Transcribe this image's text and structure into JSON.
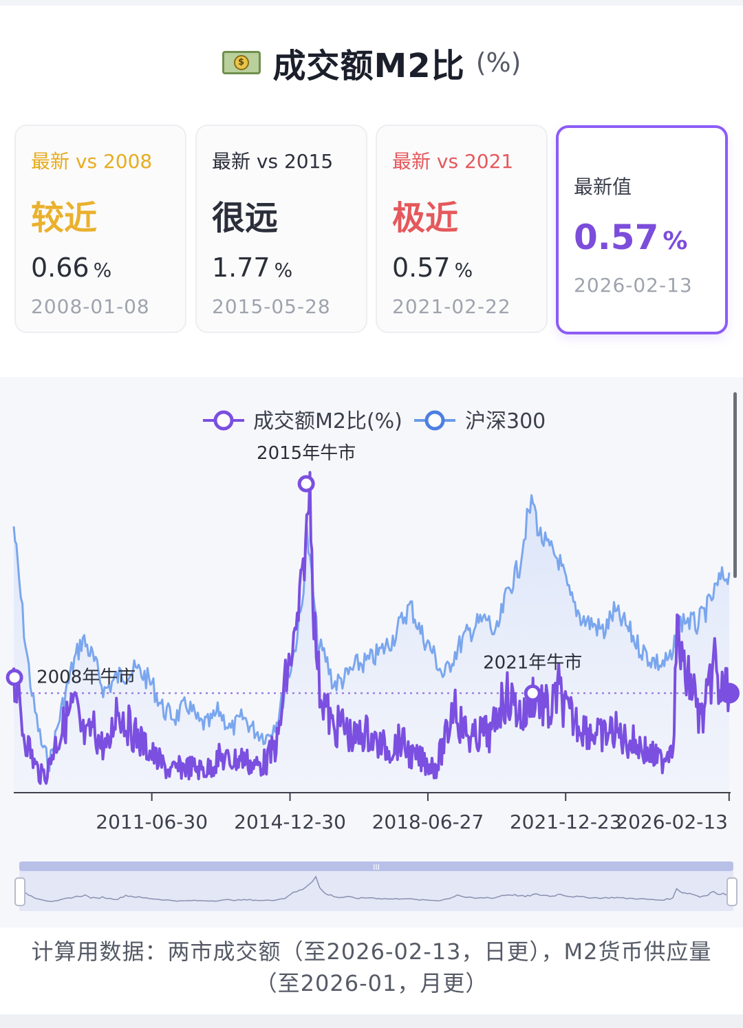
{
  "header": {
    "icon": "money-bill-icon",
    "title": "成交额M2比",
    "unit": "(%)"
  },
  "cards": [
    {
      "label": "最新 vs 2008",
      "status": "较近",
      "value": "0.66",
      "unit": "%",
      "date": "2008-01-08",
      "color": "#e6ac1f"
    },
    {
      "label": "最新 vs 2015",
      "status": "很远",
      "value": "1.77",
      "unit": "%",
      "date": "2015-05-28",
      "color": "#2b2f3a"
    },
    {
      "label": "最新 vs 2021",
      "status": "极近",
      "value": "0.57",
      "unit": "%",
      "date": "2021-02-22",
      "color": "#e5585b"
    }
  ],
  "latest": {
    "label": "最新值",
    "value": "0.57",
    "unit": "%",
    "date": "2026-02-13",
    "accent": "#8b5cf6"
  },
  "chart_data": {
    "type": "line",
    "legend": [
      "成交额M2比(%)",
      "沪深300"
    ],
    "legend_placement": "top-center",
    "x_ticks": [
      "2011-06-30",
      "2014-12-30",
      "2018-06-27",
      "2021-12-23",
      "2026-02-13"
    ],
    "x_range": [
      "2008-01-08",
      "2026-02-13"
    ],
    "reference_line": 0.57,
    "annotations": [
      {
        "label": "2008年牛市",
        "x": "2008-01-08",
        "y": 0.66
      },
      {
        "label": "2015年牛市",
        "x": "2015-05-28",
        "y": 1.77
      },
      {
        "label": "2021年牛市",
        "x": "2021-02-22",
        "y": 0.57
      }
    ],
    "series": [
      {
        "name": "成交额M2比(%)",
        "color": "#7b4fe0",
        "x": [
          2008.0,
          2008.1,
          2008.25,
          2008.4,
          2008.55,
          2008.7,
          2008.85,
          2009.0,
          2009.2,
          2009.4,
          2009.55,
          2009.7,
          2009.85,
          2010.0,
          2010.2,
          2010.4,
          2010.6,
          2010.8,
          2011.0,
          2011.2,
          2011.5,
          2011.8,
          2012.0,
          2012.3,
          2012.6,
          2012.9,
          2013.2,
          2013.5,
          2013.8,
          2014.1,
          2014.4,
          2014.7,
          2014.85,
          2015.0,
          2015.15,
          2015.3,
          2015.42,
          2015.5,
          2015.6,
          2015.75,
          2015.9,
          2016.1,
          2016.3,
          2016.6,
          2016.9,
          2017.2,
          2017.5,
          2017.8,
          2018.1,
          2018.4,
          2018.7,
          2019.0,
          2019.15,
          2019.3,
          2019.6,
          2019.9,
          2020.1,
          2020.3,
          2020.5,
          2020.7,
          2020.9,
          2021.15,
          2021.4,
          2021.6,
          2021.8,
          2022.0,
          2022.3,
          2022.6,
          2022.9,
          2023.2,
          2023.5,
          2023.8,
          2024.1,
          2024.4,
          2024.7,
          2024.8,
          2024.95,
          2025.2,
          2025.4,
          2025.6,
          2025.75,
          2025.85,
          2026.0,
          2026.12
        ],
        "y": [
          0.66,
          0.55,
          0.35,
          0.25,
          0.15,
          0.1,
          0.12,
          0.25,
          0.35,
          0.45,
          0.5,
          0.35,
          0.3,
          0.38,
          0.28,
          0.25,
          0.5,
          0.42,
          0.35,
          0.3,
          0.22,
          0.15,
          0.12,
          0.15,
          0.14,
          0.13,
          0.2,
          0.18,
          0.2,
          0.15,
          0.18,
          0.3,
          0.6,
          0.75,
          0.9,
          1.2,
          1.5,
          1.77,
          1.0,
          0.6,
          0.5,
          0.35,
          0.4,
          0.3,
          0.35,
          0.28,
          0.25,
          0.3,
          0.2,
          0.18,
          0.15,
          0.35,
          0.55,
          0.4,
          0.3,
          0.35,
          0.32,
          0.5,
          0.55,
          0.5,
          0.42,
          0.57,
          0.5,
          0.45,
          0.6,
          0.45,
          0.4,
          0.35,
          0.32,
          0.36,
          0.3,
          0.28,
          0.22,
          0.18,
          0.3,
          0.95,
          0.7,
          0.6,
          0.4,
          0.55,
          0.8,
          0.55,
          0.6,
          0.57
        ]
      },
      {
        "name": "沪深300",
        "color": "#7aa6ee",
        "x": [
          2008.0,
          2008.1,
          2008.3,
          2008.5,
          2008.7,
          2008.9,
          2009.2,
          2009.5,
          2009.75,
          2010.0,
          2010.3,
          2010.6,
          2010.9,
          2011.2,
          2011.5,
          2011.8,
          2012.1,
          2012.4,
          2012.7,
          2012.95,
          2013.2,
          2013.5,
          2013.8,
          2014.1,
          2014.4,
          2014.7,
          2014.9,
          2015.1,
          2015.3,
          2015.42,
          2015.55,
          2015.7,
          2015.9,
          2016.1,
          2016.4,
          2016.7,
          2017.0,
          2017.3,
          2017.6,
          2017.9,
          2018.05,
          2018.3,
          2018.6,
          2018.9,
          2019.1,
          2019.4,
          2019.7,
          2020.0,
          2020.2,
          2020.5,
          2020.8,
          2021.0,
          2021.15,
          2021.3,
          2021.5,
          2021.8,
          2022.1,
          2022.4,
          2022.7,
          2022.95,
          2023.2,
          2023.5,
          2023.8,
          2024.1,
          2024.4,
          2024.7,
          2024.8,
          2025.0,
          2025.3,
          2025.6,
          2025.9,
          2026.12
        ],
        "y": [
          5400,
          4800,
          3600,
          2700,
          2100,
          1800,
          2600,
          3300,
          3700,
          3400,
          2900,
          3100,
          3200,
          3200,
          3000,
          2600,
          2500,
          2700,
          2400,
          2400,
          2600,
          2300,
          2500,
          2300,
          2200,
          2500,
          3000,
          3500,
          4200,
          5300,
          4600,
          3600,
          3400,
          3000,
          3100,
          3300,
          3350,
          3500,
          3700,
          4050,
          4200,
          3800,
          3500,
          3100,
          3400,
          3700,
          3900,
          4000,
          3700,
          4400,
          4800,
          5500,
          5800,
          5300,
          5100,
          4900,
          4300,
          4000,
          3900,
          3800,
          4100,
          3900,
          3600,
          3400,
          3300,
          3400,
          3900,
          4000,
          3900,
          4200,
          4600,
          4700
        ]
      }
    ]
  },
  "footnote": "计算用数据：两市成交额（至2026-02-13，日更），M2货币供应量（至2026-01，月更）"
}
